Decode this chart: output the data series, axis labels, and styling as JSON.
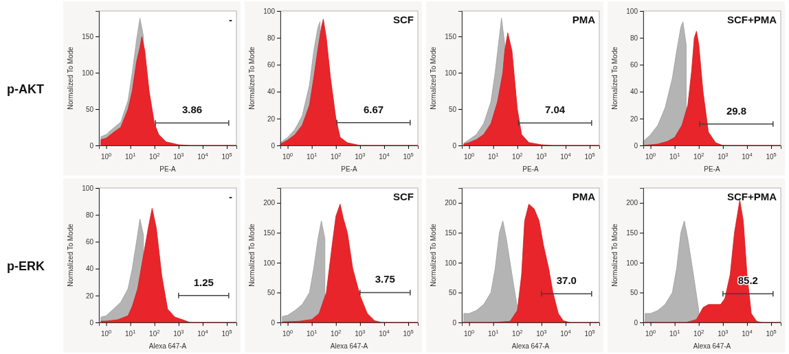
{
  "chart_data": [
    {
      "type": "area",
      "title": "-",
      "annotations": [
        "p-AKT",
        "3.86"
      ],
      "xlabel": "PE-A",
      "ylabel": "Normalized To Mode",
      "log": "x",
      "xlim": [
        0.5,
        250000
      ],
      "ylim": [
        0,
        185
      ],
      "xticks": [
        {
          "value": 1,
          "label": "10$^{0}$"
        },
        {
          "value": 10,
          "label": "10$^{1}$"
        },
        {
          "value": 100,
          "label": "10$^{2}$"
        },
        {
          "value": 1000,
          "label": "10$^{3}$"
        },
        {
          "value": 10000,
          "label": "10$^{4}$"
        },
        {
          "value": 100000,
          "label": "10$^{5}$"
        }
      ],
      "yticks": [
        0,
        50,
        100,
        150
      ],
      "series": [
        {
          "color": "#b4b4b4",
          "x": [
            0.6,
            1,
            2,
            4,
            8,
            12,
            18,
            25,
            35
          ],
          "values": [
            12,
            15,
            24,
            32,
            62,
            100,
            145,
            175,
            150
          ]
        },
        {
          "color": "#e8252a",
          "x": [
            0.6,
            1,
            2,
            4,
            8,
            12,
            18,
            25,
            30,
            40,
            60,
            100,
            150,
            300,
            1000,
            3000,
            250000
          ],
          "values": [
            8,
            10,
            18,
            25,
            50,
            75,
            115,
            135,
            150,
            130,
            75,
            30,
            15,
            5,
            1,
            0,
            0
          ]
        },
        {
          "type": "line",
          "color": "#404040",
          "x": [
            110,
            120000
          ],
          "values": [
            31,
            31
          ]
        }
      ]
    },
    {
      "type": "area",
      "title": "SCF",
      "annotations": [
        "6.67"
      ],
      "xlabel": "PE-A",
      "ylabel": "Normalized To Mode",
      "log": "x",
      "xlim": [
        0.5,
        250000
      ],
      "ylim": [
        0,
        100
      ],
      "xticks": [
        {
          "value": 1,
          "label": "10$^{0}$"
        },
        {
          "value": 10,
          "label": "10$^{1}$"
        },
        {
          "value": 100,
          "label": "10$^{2}$"
        },
        {
          "value": 1000,
          "label": "10$^{3}$"
        },
        {
          "value": 10000,
          "label": "10$^{4}$"
        },
        {
          "value": 100000,
          "label": "10$^{5}$"
        }
      ],
      "yticks": [
        0,
        20,
        40,
        60,
        80,
        100
      ],
      "series": [
        {
          "color": "#b4b4b4",
          "x": [
            0.5,
            1,
            2,
            4,
            8,
            12,
            18,
            22
          ],
          "values": [
            2,
            6,
            12,
            22,
            45,
            70,
            88,
            92
          ]
        },
        {
          "color": "#e8252a",
          "x": [
            0.5,
            1,
            2,
            4,
            8,
            12,
            18,
            25,
            30,
            40,
            60,
            100,
            150,
            300,
            1000,
            250000
          ],
          "values": [
            1,
            4,
            8,
            15,
            30,
            50,
            72,
            88,
            94,
            80,
            50,
            20,
            6,
            2,
            0,
            0
          ]
        },
        {
          "type": "line",
          "color": "#404040",
          "x": [
            110,
            120000
          ],
          "values": [
            17,
            17
          ]
        }
      ]
    },
    {
      "type": "area",
      "title": "PMA",
      "annotations": [
        "7.04"
      ],
      "xlabel": "PE-A",
      "ylabel": "Normalized To Mode",
      "log": "x",
      "xlim": [
        0.5,
        250000
      ],
      "ylim": [
        0,
        185
      ],
      "xticks": [
        {
          "value": 1,
          "label": "10$^{0}$"
        },
        {
          "value": 10,
          "label": "10$^{1}$"
        },
        {
          "value": 100,
          "label": "10$^{2}$"
        },
        {
          "value": 1000,
          "label": "10$^{3}$"
        },
        {
          "value": 10000,
          "label": "10$^{4}$"
        },
        {
          "value": 100000,
          "label": "10$^{5}$"
        }
      ],
      "yticks": [
        0,
        50,
        100,
        150
      ],
      "series": [
        {
          "color": "#b4b4b4",
          "x": [
            0.6,
            1,
            2,
            4,
            8,
            12,
            18,
            22,
            30
          ],
          "values": [
            3,
            8,
            15,
            30,
            60,
            100,
            150,
            175,
            140
          ]
        },
        {
          "color": "#e8252a",
          "x": [
            0.6,
            1,
            2,
            4,
            8,
            15,
            25,
            30,
            40,
            60,
            100,
            150,
            300,
            1000,
            3000,
            250000
          ],
          "values": [
            2,
            4,
            8,
            15,
            30,
            60,
            100,
            130,
            155,
            130,
            50,
            15,
            4,
            1,
            0,
            0
          ]
        },
        {
          "type": "line",
          "color": "#404040",
          "x": [
            110,
            120000
          ],
          "values": [
            31,
            31
          ]
        }
      ]
    },
    {
      "type": "area",
      "title": "SCF+PMA",
      "annotations": [
        "29.8"
      ],
      "xlabel": "PE-A",
      "ylabel": "Normalized To Mode",
      "log": "x",
      "xlim": [
        0.5,
        250000
      ],
      "ylim": [
        0,
        100
      ],
      "xticks": [
        {
          "value": 1,
          "label": "10$^{0}$"
        },
        {
          "value": 10,
          "label": "10$^{1}$"
        },
        {
          "value": 100,
          "label": "10$^{2}$"
        },
        {
          "value": 1000,
          "label": "10$^{3}$"
        },
        {
          "value": 10000,
          "label": "10$^{4}$"
        },
        {
          "value": 100000,
          "label": "10$^{5}$"
        }
      ],
      "yticks": [
        0,
        20,
        40,
        60,
        80,
        100
      ],
      "series": [
        {
          "color": "#b4b4b4",
          "x": [
            0.5,
            1,
            2,
            4,
            8,
            12,
            18,
            22,
            30
          ],
          "values": [
            3,
            8,
            15,
            28,
            50,
            70,
            88,
            92,
            75
          ]
        },
        {
          "color": "#e8252a",
          "x": [
            0.5,
            2,
            5,
            10,
            20,
            35,
            50,
            65,
            80,
            100,
            150,
            250,
            500,
            1000,
            250000
          ],
          "values": [
            0,
            1,
            3,
            6,
            15,
            30,
            55,
            80,
            85,
            75,
            40,
            10,
            2,
            0,
            0
          ]
        },
        {
          "type": "line",
          "color": "#404040",
          "x": [
            110,
            120000
          ],
          "values": [
            16,
            16
          ]
        }
      ]
    },
    {
      "type": "area",
      "title": "-",
      "annotations": [
        "p-ERK",
        "1.25"
      ],
      "xlabel": "Alexa 647-A",
      "ylabel": "Normalized To Mode",
      "log": "x",
      "xlim": [
        0.5,
        250000
      ],
      "ylim": [
        0,
        100
      ],
      "xticks": [
        {
          "value": 1,
          "label": "10$^{0}$"
        },
        {
          "value": 10,
          "label": "10$^{1}$"
        },
        {
          "value": 100,
          "label": "10$^{2}$"
        },
        {
          "value": 1000,
          "label": "10$^{3}$"
        },
        {
          "value": 10000,
          "label": "10$^{4}$"
        },
        {
          "value": 100000,
          "label": "10$^{5}$"
        }
      ],
      "yticks": [
        0,
        20,
        40,
        60,
        80,
        100
      ],
      "series": [
        {
          "color": "#b4b4b4",
          "x": [
            0.6,
            1,
            2,
            4,
            8,
            12,
            18,
            25,
            35
          ],
          "values": [
            4,
            5,
            10,
            15,
            25,
            40,
            60,
            77,
            65
          ]
        },
        {
          "color": "#e8252a",
          "x": [
            0.6,
            1,
            3,
            8,
            12,
            20,
            35,
            55,
            80,
            120,
            200,
            350,
            700,
            1500,
            3000,
            250000
          ],
          "values": [
            1,
            1,
            2,
            5,
            12,
            25,
            50,
            70,
            85,
            70,
            35,
            10,
            4,
            2,
            0,
            0
          ]
        },
        {
          "type": "line",
          "color": "#404040",
          "x": [
            1000,
            120000
          ],
          "values": [
            20,
            20
          ]
        }
      ]
    },
    {
      "type": "area",
      "title": "SCF",
      "annotations": [
        "3.75"
      ],
      "xlabel": "Alexa 647-A",
      "ylabel": "Normalized To Mode",
      "log": "x",
      "xlim": [
        0.5,
        250000
      ],
      "ylim": [
        0,
        225
      ],
      "xticks": [
        {
          "value": 1,
          "label": "10$^{0}$"
        },
        {
          "value": 10,
          "label": "10$^{1}$"
        },
        {
          "value": 100,
          "label": "10$^{2}$"
        },
        {
          "value": 1000,
          "label": "10$^{3}$"
        },
        {
          "value": 10000,
          "label": "10$^{4}$"
        },
        {
          "value": 100000,
          "label": "10$^{5}$"
        }
      ],
      "yticks": [
        0,
        50,
        100,
        150,
        200
      ],
      "series": [
        {
          "color": "#b4b4b4",
          "x": [
            0.6,
            1,
            2,
            4,
            8,
            12,
            18,
            25,
            35
          ],
          "values": [
            10,
            12,
            20,
            30,
            50,
            90,
            140,
            170,
            140
          ]
        },
        {
          "color": "#e8252a",
          "x": [
            0.6,
            3,
            10,
            20,
            40,
            70,
            100,
            150,
            200,
            300,
            500,
            1000,
            2000,
            4000,
            8000,
            250000
          ],
          "values": [
            1,
            2,
            5,
            15,
            50,
            130,
            178,
            198,
            175,
            150,
            90,
            45,
            15,
            3,
            0,
            0
          ]
        },
        {
          "type": "line",
          "color": "#404040",
          "x": [
            1000,
            120000
          ],
          "values": [
            50,
            50
          ]
        }
      ]
    },
    {
      "type": "area",
      "title": "PMA",
      "annotations": [
        "37.0"
      ],
      "xlabel": "Alexa 647-A",
      "ylabel": "Normalized To Mode",
      "log": "x",
      "xlim": [
        0.5,
        250000
      ],
      "ylim": [
        0,
        225
      ],
      "xticks": [
        {
          "value": 1,
          "label": "10$^{0}$"
        },
        {
          "value": 10,
          "label": "10$^{1}$"
        },
        {
          "value": 100,
          "label": "10$^{2}$"
        },
        {
          "value": 1000,
          "label": "10$^{3}$"
        },
        {
          "value": 10000,
          "label": "10$^{4}$"
        },
        {
          "value": 100000,
          "label": "10$^{5}$"
        }
      ],
      "yticks": [
        0,
        50,
        100,
        150,
        200
      ],
      "series": [
        {
          "color": "#b4b4b4",
          "x": [
            0.6,
            1,
            2,
            4,
            8,
            12,
            18,
            25,
            35,
            60,
            100
          ],
          "values": [
            15,
            15,
            20,
            30,
            50,
            90,
            150,
            170,
            140,
            80,
            25
          ]
        },
        {
          "color": "#e8252a",
          "x": [
            0.5,
            10,
            50,
            100,
            150,
            200,
            300,
            500,
            800,
            1200,
            2000,
            3000,
            5000,
            8000,
            15000,
            250000
          ],
          "values": [
            0,
            0,
            2,
            20,
            80,
            170,
            198,
            190,
            170,
            130,
            90,
            50,
            15,
            3,
            0,
            0
          ]
        },
        {
          "type": "line",
          "color": "#404040",
          "x": [
            1000,
            120000
          ],
          "values": [
            48,
            48
          ]
        }
      ]
    },
    {
      "type": "area",
      "title": "SCF+PMA",
      "annotations": [
        "85.2"
      ],
      "xlabel": "Alexa 647-A",
      "ylabel": "Normalized To Mode",
      "log": "x",
      "xlim": [
        0.5,
        250000
      ],
      "ylim": [
        0,
        225
      ],
      "xticks": [
        {
          "value": 1,
          "label": "10$^{0}$"
        },
        {
          "value": 10,
          "label": "10$^{1}$"
        },
        {
          "value": 100,
          "label": "10$^{2}$"
        },
        {
          "value": 1000,
          "label": "10$^{3}$"
        },
        {
          "value": 10000,
          "label": "10$^{4}$"
        },
        {
          "value": 100000,
          "label": "10$^{5}$"
        }
      ],
      "yticks": [
        0,
        50,
        100,
        150,
        200
      ],
      "series": [
        {
          "color": "#b4b4b4",
          "x": [
            0.6,
            1,
            2,
            4,
            8,
            12,
            18,
            25,
            35,
            60,
            100
          ],
          "values": [
            15,
            15,
            20,
            30,
            50,
            90,
            150,
            170,
            140,
            80,
            20
          ]
        },
        {
          "color": "#e8252a",
          "x": [
            0.5,
            30,
            80,
            150,
            250,
            500,
            800,
            1200,
            2000,
            3000,
            5000,
            7000,
            10000,
            15000,
            25000,
            40000,
            250000
          ],
          "values": [
            0,
            0,
            5,
            25,
            30,
            30,
            30,
            40,
            80,
            150,
            205,
            170,
            80,
            15,
            2,
            0,
            0
          ]
        },
        {
          "type": "line",
          "color": "#404040",
          "x": [
            1000,
            120000
          ],
          "values": [
            48,
            48
          ]
        }
      ]
    }
  ]
}
